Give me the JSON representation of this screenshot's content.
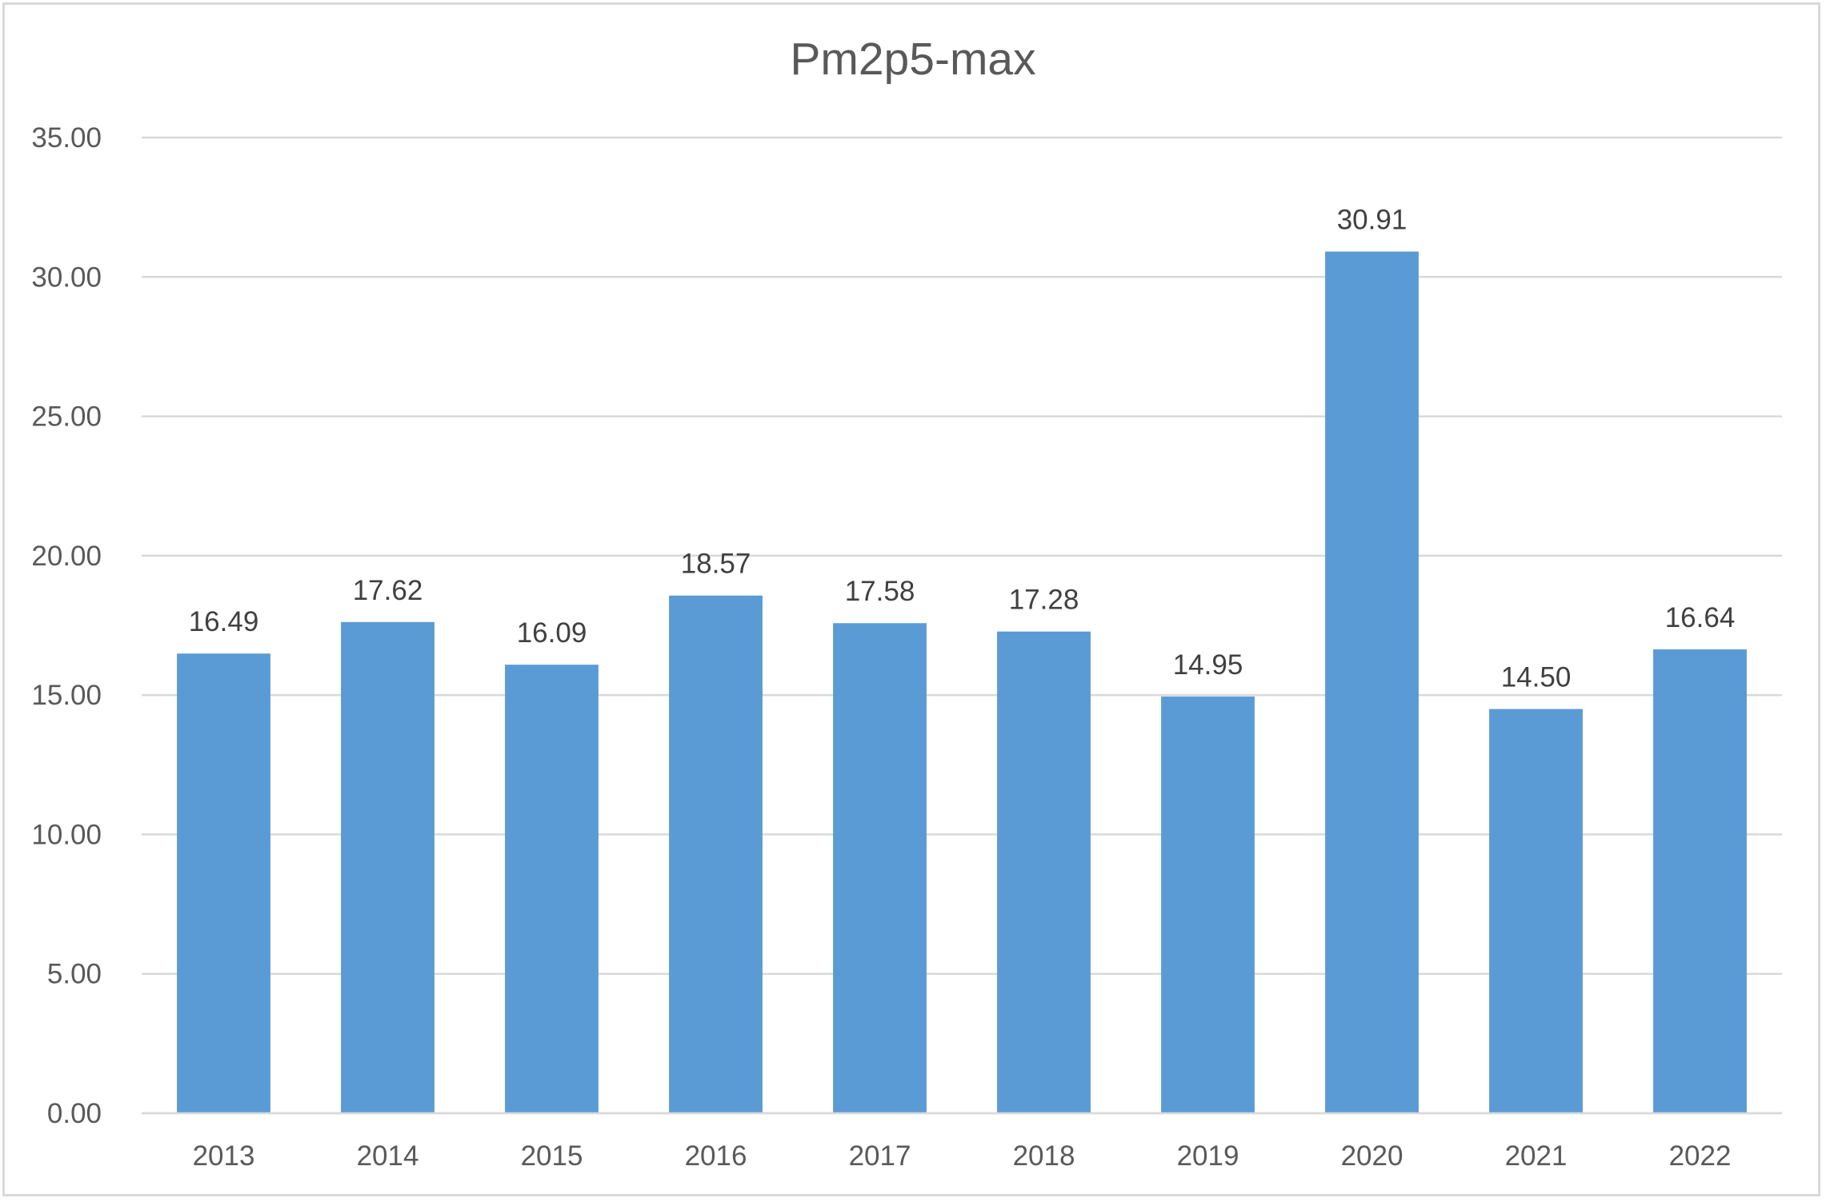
{
  "chart_data": {
    "type": "bar",
    "title": "Pm2p5-max",
    "xlabel": "",
    "ylabel": "",
    "categories": [
      "2013",
      "2014",
      "2015",
      "2016",
      "2017",
      "2018",
      "2019",
      "2020",
      "2021",
      "2022"
    ],
    "values": [
      16.49,
      17.62,
      16.09,
      18.57,
      17.58,
      17.28,
      14.95,
      30.91,
      14.5,
      16.64
    ],
    "data_labels": [
      "16.49",
      "17.62",
      "16.09",
      "18.57",
      "17.58",
      "17.28",
      "14.95",
      "30.91",
      "14.50",
      "16.64"
    ],
    "y_ticks": [
      "0.00",
      "5.00",
      "10.00",
      "15.00",
      "20.00",
      "25.00",
      "30.00",
      "35.00"
    ],
    "ylim": [
      0,
      35
    ],
    "grid": true,
    "legend": "none",
    "bar_color": "#5b9bd5",
    "gridline_color": "#d9d9d9"
  }
}
